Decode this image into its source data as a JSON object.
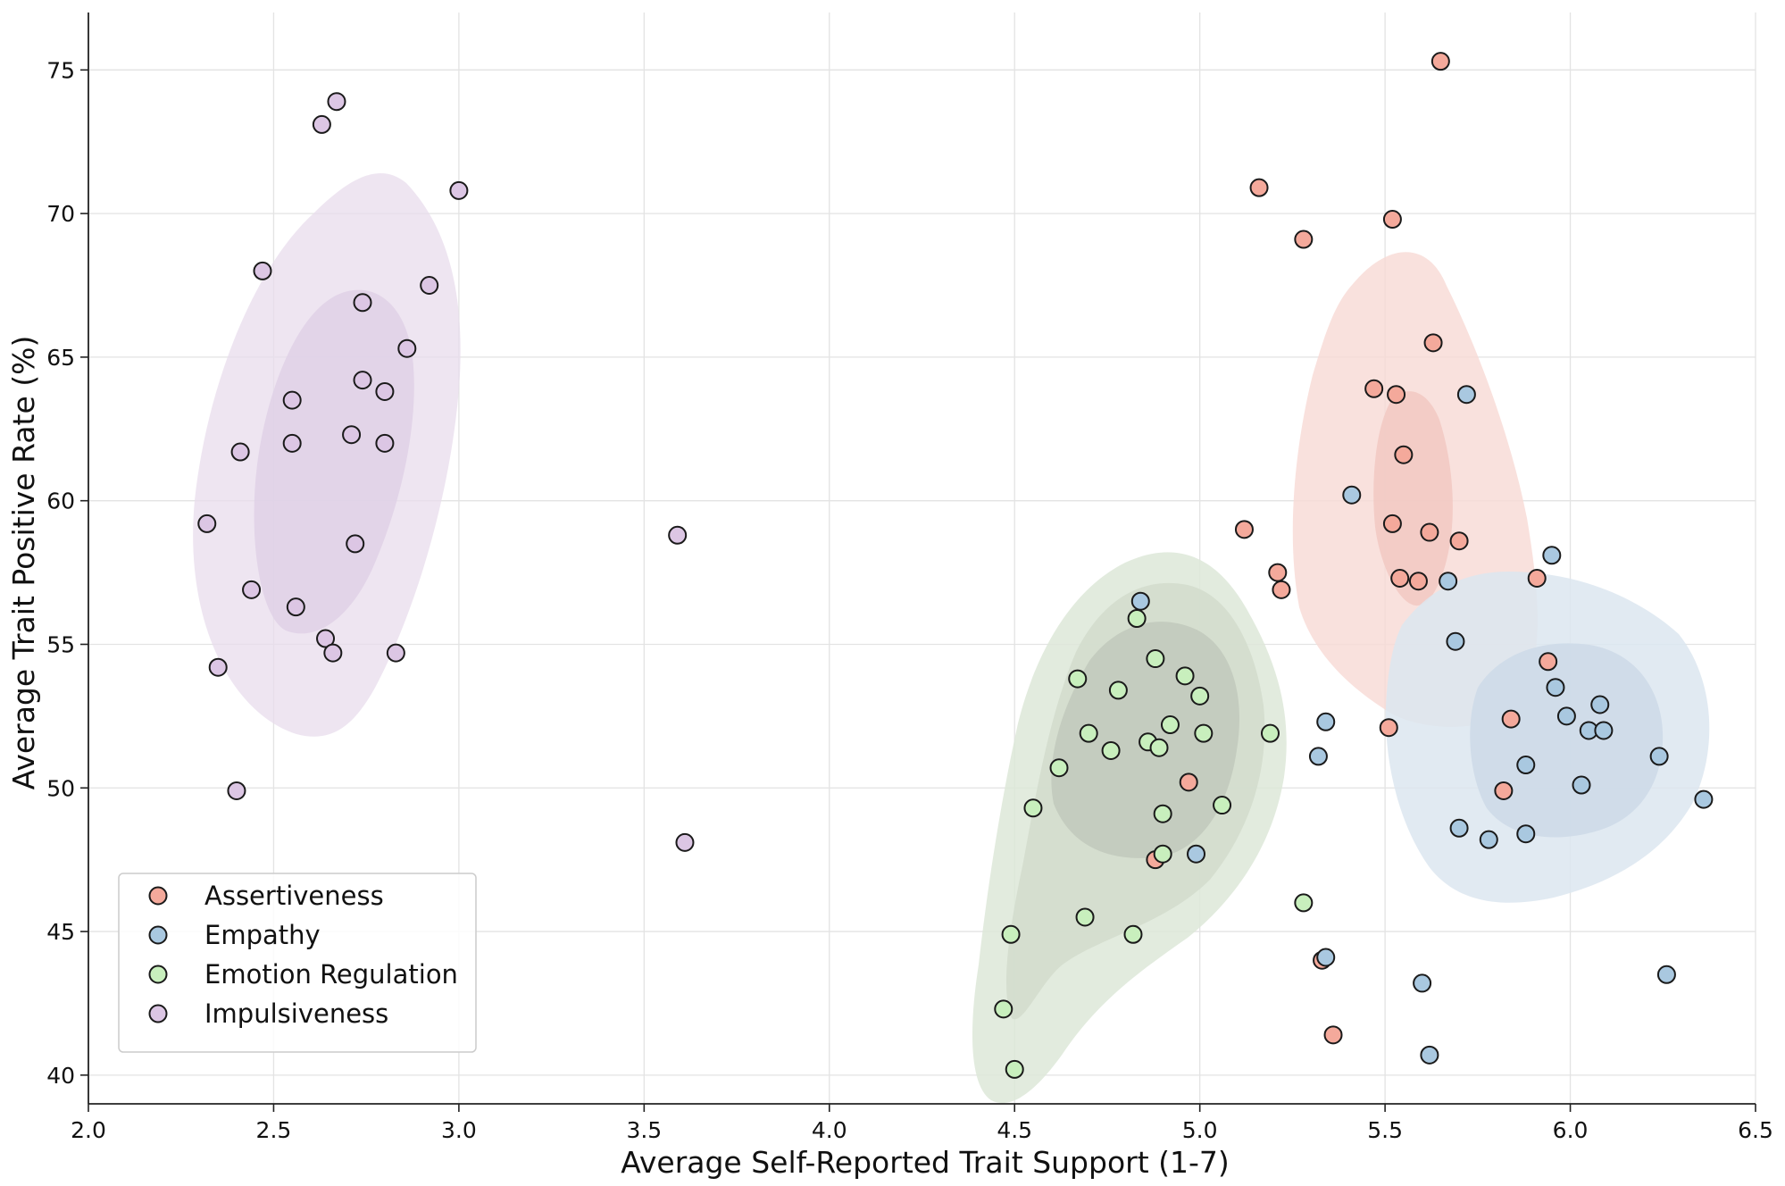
{
  "chart_data": {
    "type": "scatter",
    "title": "",
    "xlabel": "Average Self-Reported Trait Support (1-7)",
    "ylabel": "Average Trait Positive Rate (%)",
    "xlim": [
      2.0,
      6.5
    ],
    "ylim": [
      39,
      77
    ],
    "xticks": [
      "2.0",
      "2.5",
      "3.0",
      "3.5",
      "4.0",
      "4.5",
      "5.0",
      "5.5",
      "6.0",
      "6.5"
    ],
    "yticks": [
      "40",
      "45",
      "50",
      "55",
      "60",
      "65",
      "70",
      "75"
    ],
    "grid": true,
    "legend_position": "bottom-left",
    "density_contours": true,
    "series": [
      {
        "name": "Assertiveness",
        "color": "#f4a99b",
        "points": [
          [
            5.65,
            75.3
          ],
          [
            5.16,
            70.9
          ],
          [
            5.52,
            69.8
          ],
          [
            5.28,
            69.1
          ],
          [
            5.63,
            65.5
          ],
          [
            5.47,
            63.9
          ],
          [
            5.53,
            63.7
          ],
          [
            5.55,
            61.6
          ],
          [
            5.12,
            59.0
          ],
          [
            5.52,
            59.2
          ],
          [
            5.62,
            58.9
          ],
          [
            5.7,
            58.6
          ],
          [
            5.21,
            57.5
          ],
          [
            5.54,
            57.3
          ],
          [
            5.59,
            57.2
          ],
          [
            5.91,
            57.3
          ],
          [
            5.22,
            56.9
          ],
          [
            5.94,
            54.4
          ],
          [
            5.84,
            52.4
          ],
          [
            5.51,
            52.1
          ],
          [
            5.82,
            49.9
          ],
          [
            4.97,
            50.2
          ],
          [
            4.88,
            47.5
          ],
          [
            5.33,
            44.0
          ],
          [
            5.36,
            41.4
          ]
        ]
      },
      {
        "name": "Empathy",
        "color": "#a9c8e0",
        "points": [
          [
            5.72,
            63.7
          ],
          [
            5.41,
            60.2
          ],
          [
            5.95,
            58.1
          ],
          [
            5.67,
            57.2
          ],
          [
            4.84,
            56.5
          ],
          [
            5.69,
            55.1
          ],
          [
            5.96,
            53.5
          ],
          [
            6.08,
            52.9
          ],
          [
            5.99,
            52.5
          ],
          [
            5.34,
            52.3
          ],
          [
            6.05,
            52.0
          ],
          [
            6.09,
            52.0
          ],
          [
            5.32,
            51.1
          ],
          [
            6.24,
            51.1
          ],
          [
            5.88,
            50.8
          ],
          [
            6.03,
            50.1
          ],
          [
            6.36,
            49.6
          ],
          [
            5.7,
            48.6
          ],
          [
            5.78,
            48.2
          ],
          [
            5.88,
            48.4
          ],
          [
            4.99,
            47.7
          ],
          [
            5.34,
            44.1
          ],
          [
            6.26,
            43.5
          ],
          [
            5.6,
            43.2
          ],
          [
            5.62,
            40.7
          ]
        ]
      },
      {
        "name": "Emotion Regulation",
        "color": "#c8efbd",
        "points": [
          [
            4.83,
            55.9
          ],
          [
            4.88,
            54.5
          ],
          [
            4.96,
            53.9
          ],
          [
            4.67,
            53.8
          ],
          [
            4.78,
            53.4
          ],
          [
            5.0,
            53.2
          ],
          [
            4.92,
            52.2
          ],
          [
            4.7,
            51.9
          ],
          [
            5.01,
            51.9
          ],
          [
            5.19,
            51.9
          ],
          [
            4.86,
            51.6
          ],
          [
            4.89,
            51.4
          ],
          [
            4.76,
            51.3
          ],
          [
            4.62,
            50.7
          ],
          [
            4.55,
            49.3
          ],
          [
            5.06,
            49.4
          ],
          [
            4.9,
            49.1
          ],
          [
            4.9,
            47.7
          ],
          [
            5.28,
            46.0
          ],
          [
            4.69,
            45.5
          ],
          [
            4.49,
            44.9
          ],
          [
            4.82,
            44.9
          ],
          [
            4.47,
            42.3
          ],
          [
            4.5,
            40.2
          ]
        ]
      },
      {
        "name": "Impulsiveness",
        "color": "#dcc6e4",
        "points": [
          [
            2.67,
            73.9
          ],
          [
            2.63,
            73.1
          ],
          [
            3.0,
            70.8
          ],
          [
            2.47,
            68.0
          ],
          [
            2.92,
            67.5
          ],
          [
            2.74,
            66.9
          ],
          [
            2.86,
            65.3
          ],
          [
            2.74,
            64.2
          ],
          [
            2.8,
            63.8
          ],
          [
            2.55,
            63.5
          ],
          [
            2.71,
            62.3
          ],
          [
            2.55,
            62.0
          ],
          [
            2.8,
            62.0
          ],
          [
            2.41,
            61.7
          ],
          [
            2.32,
            59.2
          ],
          [
            2.72,
            58.5
          ],
          [
            3.59,
            58.8
          ],
          [
            2.44,
            56.9
          ],
          [
            2.56,
            56.3
          ],
          [
            2.64,
            55.2
          ],
          [
            2.66,
            54.7
          ],
          [
            2.83,
            54.7
          ],
          [
            2.35,
            54.2
          ],
          [
            2.4,
            49.9
          ],
          [
            3.61,
            48.1
          ]
        ]
      }
    ]
  }
}
